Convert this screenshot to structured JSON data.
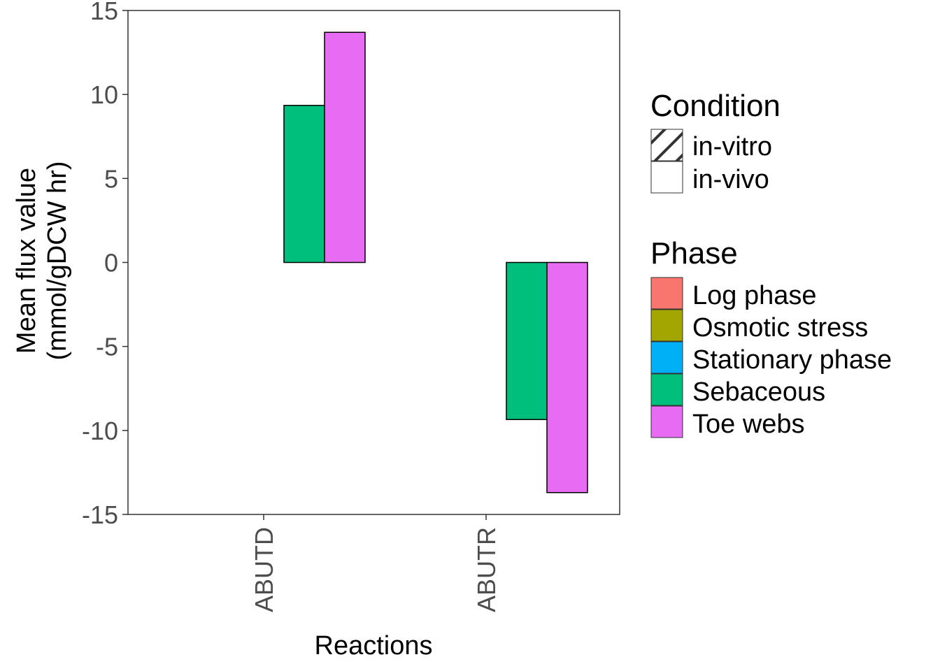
{
  "chart_data": {
    "type": "bar",
    "categories": [
      "ABUTD",
      "ABUTR"
    ],
    "xlabel": "Reactions",
    "ylabel_lines": [
      "Mean flux value",
      "(mmol/gDCW hr)"
    ],
    "ylim": [
      -15,
      15
    ],
    "yticks": [
      15,
      10,
      5,
      0,
      -5,
      -10,
      -15
    ],
    "ytick_labels": [
      "15",
      "10",
      "5",
      "0",
      "-5",
      "-10",
      "-15"
    ],
    "grid": false,
    "legend_position": "right",
    "series": [
      {
        "name": "Log phase",
        "color": "#F8766D",
        "condition": "in-vitro",
        "values": [
          0,
          0
        ]
      },
      {
        "name": "Osmotic stress",
        "color": "#A3A500",
        "condition": "in-vitro",
        "values": [
          0,
          0
        ]
      },
      {
        "name": "Stationary phase",
        "color": "#00B0F6",
        "condition": "in-vitro",
        "values": [
          0,
          0
        ]
      },
      {
        "name": "Sebaceous",
        "color": "#00BF7D",
        "condition": "in-vivo",
        "values": [
          9.35,
          -9.35
        ]
      },
      {
        "name": "Toe webs",
        "color": "#E76BF3",
        "condition": "in-vivo",
        "values": [
          13.7,
          -13.7
        ]
      }
    ],
    "legends": {
      "condition": {
        "title": "Condition",
        "items": [
          {
            "label": "in-vitro",
            "pattern": "stripe"
          },
          {
            "label": "in-vivo",
            "pattern": "none"
          }
        ]
      },
      "phase": {
        "title": "Phase",
        "items": [
          {
            "label": "Log phase",
            "color": "#F8766D"
          },
          {
            "label": "Osmotic stress",
            "color": "#A3A500"
          },
          {
            "label": "Stationary phase",
            "color": "#00B0F6"
          },
          {
            "label": "Sebaceous",
            "color": "#00BF7D"
          },
          {
            "label": "Toe webs",
            "color": "#E76BF3"
          }
        ]
      }
    }
  }
}
